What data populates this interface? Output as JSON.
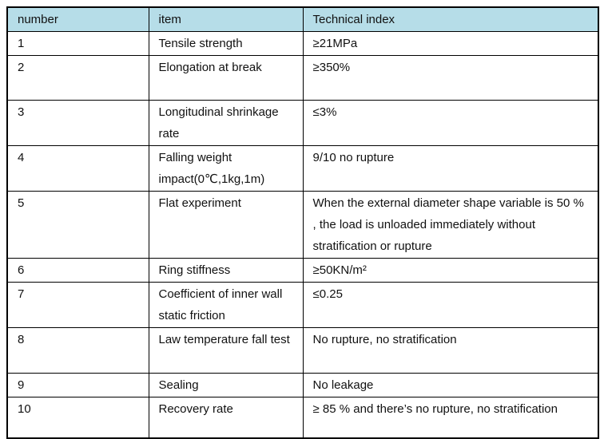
{
  "table": {
    "header_bg": "#b6dde8",
    "border_color": "#000000",
    "headers": {
      "number": "number",
      "item": "item",
      "index": "Technical index"
    },
    "rows": [
      {
        "number": "1",
        "item": "Tensile strength",
        "index": "≥21MPa"
      },
      {
        "number": "2",
        "item": "Elongation at break",
        "index": "≥350%"
      },
      {
        "number": "3",
        "item": "Longitudinal shrinkage rate",
        "index": "≤3%"
      },
      {
        "number": "4",
        "item": "Falling weight impact(0℃,1kg,1m)",
        "index": "9/10 no rupture"
      },
      {
        "number": "5",
        "item": "Flat experiment",
        "index": "When the external diameter shape variable is 50 % , the load is unloaded immediately without stratification or rupture"
      },
      {
        "number": "6",
        "item": "Ring stiffness",
        "index": "≥50KN/m²"
      },
      {
        "number": "7",
        "item": "Coefficient of inner wall static friction",
        "index": "≤0.25"
      },
      {
        "number": "8",
        "item": "Law temperature fall test",
        "index": "No rupture, no stratification"
      },
      {
        "number": "9",
        "item": "Sealing",
        "index": "No leakage"
      },
      {
        "number": "10",
        "item": "Recovery rate",
        "index": "≥ 85 %  and there’s no rupture, no stratification"
      }
    ]
  }
}
